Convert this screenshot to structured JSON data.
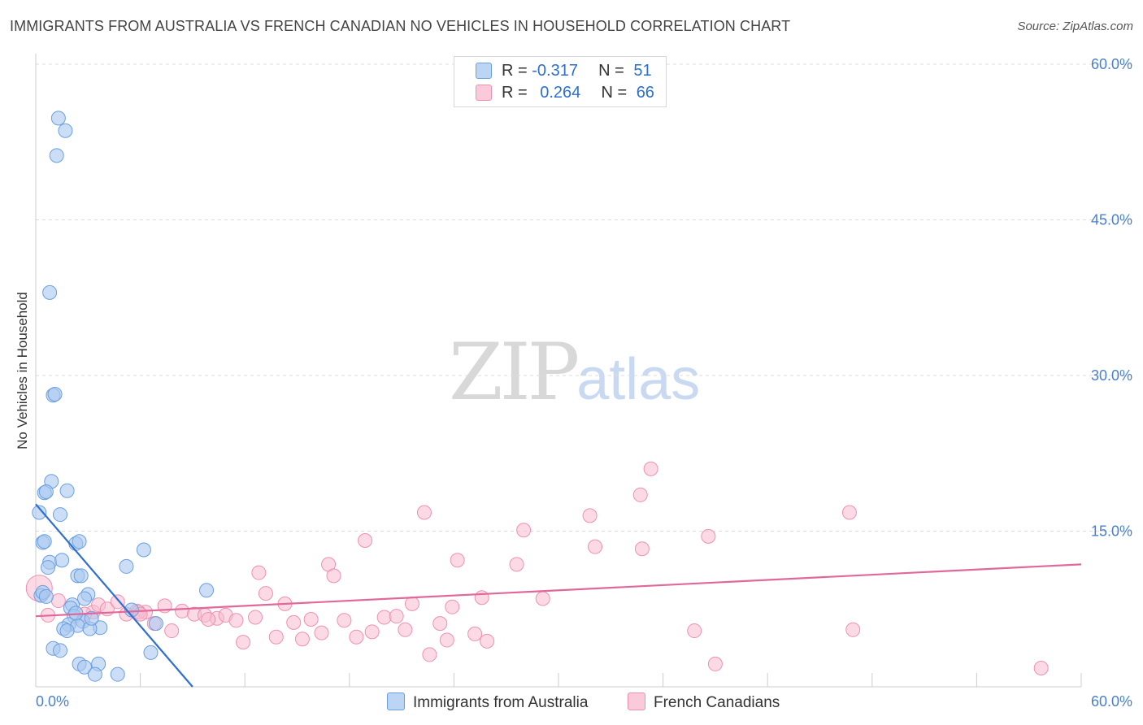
{
  "header": {
    "title": "IMMIGRANTS FROM AUSTRALIA VS FRENCH CANADIAN NO VEHICLES IN HOUSEHOLD CORRELATION CHART",
    "source": "Source: ZipAtlas.com"
  },
  "watermark": {
    "zip": "ZIP",
    "atlas": "atlas"
  },
  "legend_top": {
    "rows": [
      {
        "r_label": "R = ",
        "r_value": "-0.317",
        "n_label": "N = ",
        "n_value": "51"
      },
      {
        "r_label": "R = ",
        "r_value": "0.264",
        "n_label": "N = ",
        "n_value": "66"
      }
    ]
  },
  "legend_bottom": {
    "items": [
      {
        "label": "Immigrants from Australia"
      },
      {
        "label": "French Canadians"
      }
    ]
  },
  "colors": {
    "blue_fill": "#a9c8f0",
    "blue_stroke": "#6b9fe0",
    "blue_line": "#2f6fd1",
    "pink_fill": "#f7bcd0",
    "pink_stroke": "#ee91b1",
    "pink_line": "#e0699a",
    "grid": "#dddddd",
    "axis_text": "#4a7fd0"
  },
  "chart_data": {
    "type": "scatter",
    "title": "IMMIGRANTS FROM AUSTRALIA VS FRENCH CANADIAN NO VEHICLES IN HOUSEHOLD CORRELATION CHART",
    "xlabel": "",
    "ylabel": "No Vehicles in Household",
    "xlim": [
      0,
      60
    ],
    "ylim": [
      0,
      60
    ],
    "x_tick_labels": [
      "0.0%",
      "60.0%"
    ],
    "y_ticks": [
      15,
      30,
      45,
      60
    ],
    "y_tick_labels": [
      "15.0%",
      "30.0%",
      "45.0%",
      "60.0%"
    ],
    "grid": true,
    "legend_position": "top-center",
    "series": [
      {
        "name": "Immigrants from Australia",
        "R": -0.317,
        "N": 51,
        "trend": {
          "x": [
            0,
            9.0
          ],
          "y": [
            17.6,
            0
          ]
        },
        "points": [
          [
            1.3,
            54.8
          ],
          [
            1.7,
            53.6
          ],
          [
            1.2,
            51.2
          ],
          [
            0.8,
            38.0
          ],
          [
            1.0,
            28.1
          ],
          [
            1.1,
            28.2
          ],
          [
            0.9,
            19.8
          ],
          [
            0.5,
            18.7
          ],
          [
            0.6,
            18.8
          ],
          [
            1.8,
            18.9
          ],
          [
            0.2,
            16.8
          ],
          [
            1.4,
            16.6
          ],
          [
            0.4,
            13.9
          ],
          [
            0.5,
            14.0
          ],
          [
            2.3,
            13.8
          ],
          [
            2.5,
            14.0
          ],
          [
            6.2,
            13.2
          ],
          [
            0.8,
            12.0
          ],
          [
            1.5,
            12.2
          ],
          [
            0.7,
            11.5
          ],
          [
            5.2,
            11.6
          ],
          [
            2.4,
            10.7
          ],
          [
            2.6,
            10.7
          ],
          [
            9.8,
            9.3
          ],
          [
            0.3,
            8.8
          ],
          [
            0.4,
            9.1
          ],
          [
            3.0,
            8.9
          ],
          [
            2.8,
            8.5
          ],
          [
            2.1,
            7.9
          ],
          [
            2.0,
            7.6
          ],
          [
            5.5,
            7.4
          ],
          [
            2.2,
            6.8
          ],
          [
            2.7,
            6.3
          ],
          [
            1.9,
            6.0
          ],
          [
            2.4,
            5.9
          ],
          [
            3.7,
            5.7
          ],
          [
            1.6,
            5.6
          ],
          [
            3.1,
            5.6
          ],
          [
            6.9,
            6.1
          ],
          [
            1.0,
            3.7
          ],
          [
            1.4,
            3.5
          ],
          [
            6.6,
            3.3
          ],
          [
            2.5,
            2.2
          ],
          [
            3.6,
            2.2
          ],
          [
            2.8,
            1.9
          ],
          [
            3.4,
            1.2
          ],
          [
            4.7,
            1.2
          ],
          [
            1.8,
            5.4
          ],
          [
            0.6,
            8.7
          ],
          [
            2.3,
            7.1
          ],
          [
            3.2,
            6.6
          ]
        ]
      },
      {
        "name": "French Canadians",
        "R": 0.264,
        "N": 66,
        "trend": {
          "x": [
            0,
            60
          ],
          "y": [
            6.8,
            11.8
          ]
        },
        "points": [
          [
            0.2,
            9.5
          ],
          [
            0.7,
            6.9
          ],
          [
            1.3,
            8.3
          ],
          [
            3.3,
            7.2
          ],
          [
            3.6,
            7.9
          ],
          [
            4.1,
            7.5
          ],
          [
            4.7,
            8.2
          ],
          [
            5.2,
            7.0
          ],
          [
            5.8,
            7.3
          ],
          [
            6.3,
            7.2
          ],
          [
            6.8,
            6.1
          ],
          [
            7.4,
            7.8
          ],
          [
            7.8,
            5.4
          ],
          [
            8.4,
            7.3
          ],
          [
            9.1,
            7.0
          ],
          [
            9.7,
            6.9
          ],
          [
            10.4,
            6.6
          ],
          [
            10.9,
            6.9
          ],
          [
            11.5,
            6.4
          ],
          [
            11.9,
            4.3
          ],
          [
            12.6,
            6.7
          ],
          [
            12.8,
            11.0
          ],
          [
            13.2,
            9.0
          ],
          [
            13.8,
            4.8
          ],
          [
            14.3,
            8.0
          ],
          [
            14.8,
            6.2
          ],
          [
            15.3,
            4.6
          ],
          [
            15.8,
            6.5
          ],
          [
            16.4,
            5.2
          ],
          [
            16.8,
            11.8
          ],
          [
            17.1,
            10.7
          ],
          [
            17.7,
            6.4
          ],
          [
            18.4,
            4.8
          ],
          [
            18.9,
            14.1
          ],
          [
            19.3,
            5.3
          ],
          [
            20.0,
            6.7
          ],
          [
            20.7,
            6.8
          ],
          [
            21.2,
            5.5
          ],
          [
            21.6,
            8.0
          ],
          [
            22.3,
            16.8
          ],
          [
            22.6,
            3.1
          ],
          [
            23.2,
            6.1
          ],
          [
            23.6,
            4.5
          ],
          [
            23.9,
            7.7
          ],
          [
            24.2,
            12.2
          ],
          [
            25.2,
            5.1
          ],
          [
            25.9,
            4.4
          ],
          [
            25.6,
            8.6
          ],
          [
            27.6,
            11.8
          ],
          [
            28.0,
            15.1
          ],
          [
            29.1,
            8.5
          ],
          [
            31.8,
            16.5
          ],
          [
            32.1,
            13.5
          ],
          [
            34.7,
            18.5
          ],
          [
            34.8,
            13.3
          ],
          [
            35.3,
            21.0
          ],
          [
            37.8,
            5.4
          ],
          [
            38.6,
            14.5
          ],
          [
            39.0,
            2.2
          ],
          [
            46.7,
            16.8
          ],
          [
            46.9,
            5.5
          ],
          [
            57.7,
            1.8
          ],
          [
            2.8,
            7.0
          ],
          [
            5.9,
            7.2
          ],
          [
            9.9,
            6.5
          ],
          [
            6.0,
            7.0
          ]
        ]
      }
    ]
  }
}
